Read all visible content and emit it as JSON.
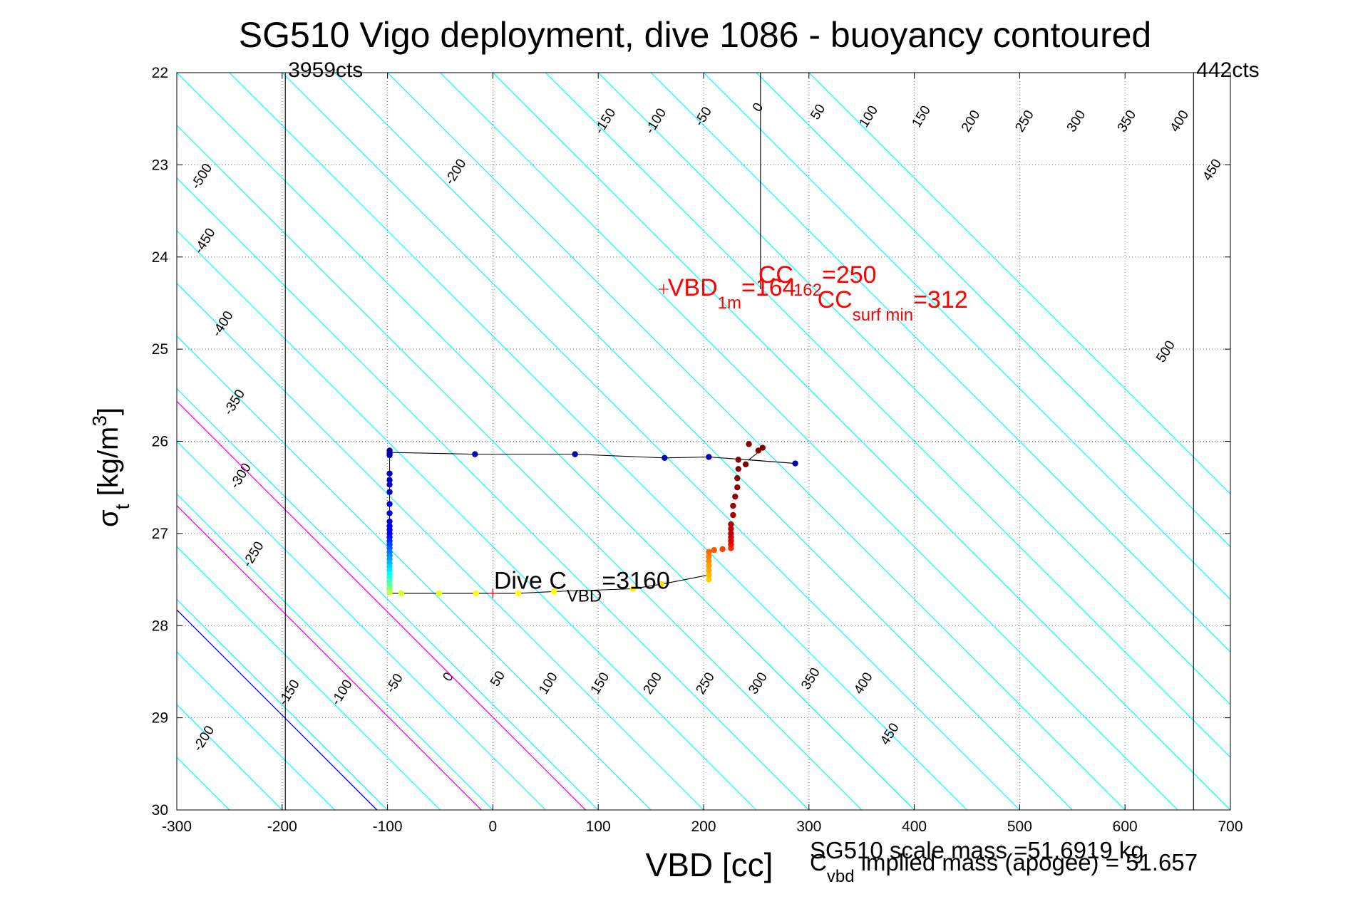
{
  "chart_data": {
    "type": "scatter",
    "title": "SG510 Vigo deployment, dive 1086 - buoyancy contoured",
    "xlabel": "VBD [cc]",
    "ylabel": {
      "sym": "σ",
      "sub": "t",
      "unit": " [kg/m",
      "sup": "3",
      "close": "]"
    },
    "xlim": [
      -300,
      700
    ],
    "ylim": [
      22,
      30
    ],
    "y_reversed": true,
    "xticks": [
      -300,
      -200,
      -100,
      0,
      100,
      200,
      300,
      400,
      500,
      600,
      700
    ],
    "yticks": [
      22,
      23,
      24,
      25,
      26,
      27,
      28,
      29,
      30
    ],
    "grid": true,
    "counts_labels": {
      "left": {
        "x": -197,
        "text": "3959cts"
      },
      "right": {
        "x": 665,
        "text": "442cts"
      }
    },
    "buoyancy_contours": {
      "slope": 87.5,
      "levels": [
        -500,
        -450,
        -400,
        -350,
        -300,
        -250,
        -200,
        -150,
        -100,
        -50,
        0,
        50,
        100,
        150,
        200,
        250,
        300,
        350,
        400,
        450,
        500
      ],
      "upper_labels": [
        {
          "text": "-500",
          "x": -273,
          "y": 23.15
        },
        {
          "text": "-450",
          "x": -270,
          "y": 23.85
        },
        {
          "text": "-400",
          "x": -253,
          "y": 24.75
        },
        {
          "text": "-350",
          "x": -242,
          "y": 25.6
        },
        {
          "text": "-300",
          "x": -236,
          "y": 26.4
        },
        {
          "text": "-250",
          "x": -224,
          "y": 27.25
        },
        {
          "text": "-200",
          "x": -32,
          "y": 23.1
        },
        {
          "text": "-150",
          "x": 110,
          "y": 22.55
        },
        {
          "text": "-100",
          "x": 158,
          "y": 22.55
        },
        {
          "text": "-50",
          "x": 203,
          "y": 22.5
        },
        {
          "text": "0",
          "x": 255,
          "y": 22.4
        },
        {
          "text": "50",
          "x": 312,
          "y": 22.45
        },
        {
          "text": "100",
          "x": 360,
          "y": 22.5
        },
        {
          "text": "150",
          "x": 410,
          "y": 22.5
        },
        {
          "text": "200",
          "x": 457,
          "y": 22.55
        },
        {
          "text": "250",
          "x": 508,
          "y": 22.55
        },
        {
          "text": "300",
          "x": 557,
          "y": 22.55
        },
        {
          "text": "350",
          "x": 605,
          "y": 22.55
        },
        {
          "text": "400",
          "x": 655,
          "y": 22.55
        },
        {
          "text": "450",
          "x": 686,
          "y": 23.08
        },
        {
          "text": "500",
          "x": 642,
          "y": 25.05
        }
      ],
      "lower_labels": [
        {
          "text": "-200",
          "x": -271,
          "y": 29.25
        },
        {
          "text": "-150",
          "x": -190,
          "y": 28.75
        },
        {
          "text": "-100",
          "x": -140,
          "y": 28.75
        },
        {
          "text": "-50",
          "x": -90,
          "y": 28.65
        },
        {
          "text": "0",
          "x": -39,
          "y": 28.58
        },
        {
          "text": "50",
          "x": 8,
          "y": 28.6
        },
        {
          "text": "100",
          "x": 56,
          "y": 28.65
        },
        {
          "text": "150",
          "x": 105,
          "y": 28.65
        },
        {
          "text": "200",
          "x": 155,
          "y": 28.65
        },
        {
          "text": "250",
          "x": 205,
          "y": 28.65
        },
        {
          "text": "300",
          "x": 255,
          "y": 28.65
        },
        {
          "text": "350",
          "x": 305,
          "y": 28.6
        },
        {
          "text": "400",
          "x": 355,
          "y": 28.65
        },
        {
          "text": "450",
          "x": 380,
          "y": 29.2
        }
      ]
    },
    "reference_lines": [
      {
        "name": "vbd-1m-line",
        "color": "#0000ff",
        "x0": -110,
        "y0": 30,
        "slope": 87.5
      },
      {
        "name": "cc-162-line",
        "color": "#ff00ff",
        "x0": -11,
        "y0": 30,
        "slope": 87.5
      },
      {
        "name": "cc-surf-min-line",
        "color": "#ff00ff",
        "x0": 88,
        "y0": 30,
        "slope": 87.5
      }
    ],
    "vertical_lines": [
      {
        "name": "min-counts-line",
        "x": -197,
        "color": "#000000"
      },
      {
        "name": "max-counts-line",
        "x": 665,
        "color": "#000000"
      },
      {
        "name": "vbd-1m-vertical",
        "x": 254,
        "y_from": 22,
        "y_to": 24.35,
        "color": "#000000"
      }
    ],
    "annotations": [
      {
        "name": "vbd-1m-label",
        "main": "VBD",
        "sub": "1m",
        "value": "=164",
        "x": 166,
        "y": 24.42,
        "color": "#ff0000",
        "marker_x": 162,
        "marker_y": 24.35
      },
      {
        "name": "cc-162-label",
        "main": "CC",
        "sub": "162",
        "value": "=250",
        "x": 252,
        "y": 24.28,
        "color": "#ff0000"
      },
      {
        "name": "cc-surf-min-label",
        "main": "CC",
        "sub": "surf min",
        "value": "=312",
        "x": 308,
        "y": 24.55,
        "color": "#ff0000"
      },
      {
        "name": "dive-cvbd-label",
        "main": "Dive C",
        "sub": "VBD",
        "value": "=3160",
        "x": 1,
        "y": 27.6,
        "color": "#000000",
        "marker_x": 0,
        "marker_y": 27.65
      }
    ],
    "path_black": [
      [
        -98,
        26.12
      ],
      [
        -17,
        26.14
      ],
      [
        78,
        26.14
      ],
      [
        163,
        26.18
      ],
      [
        205,
        26.17
      ],
      [
        287,
        26.24
      ],
      [
        243,
        26.2
      ],
      [
        254,
        26.1
      ]
    ],
    "path_bottom": [
      [
        -98,
        27.65
      ],
      [
        -87,
        27.65
      ],
      [
        -51,
        27.65
      ],
      [
        -16,
        27.65
      ],
      [
        24,
        27.65
      ],
      [
        58,
        27.63
      ],
      [
        133,
        27.6
      ],
      [
        160,
        27.55
      ],
      [
        205,
        27.45
      ]
    ],
    "dive_points": [
      {
        "x": -98,
        "y": 26.1,
        "c": "#00009f"
      },
      {
        "x": -98,
        "y": 26.13,
        "c": "#0000a8"
      },
      {
        "x": -98,
        "y": 26.15,
        "c": "#0000b0"
      },
      {
        "x": -98,
        "y": 26.35,
        "c": "#0000b8"
      },
      {
        "x": -98,
        "y": 26.42,
        "c": "#0000c0"
      },
      {
        "x": -98,
        "y": 26.47,
        "c": "#0000c8"
      },
      {
        "x": -98,
        "y": 26.55,
        "c": "#0000d0"
      },
      {
        "x": -98,
        "y": 26.68,
        "c": "#0000d8"
      },
      {
        "x": -98,
        "y": 26.78,
        "c": "#0000e0"
      },
      {
        "x": -98,
        "y": 26.87,
        "c": "#0000e8"
      },
      {
        "x": -98,
        "y": 26.92,
        "c": "#0000f0"
      },
      {
        "x": -98,
        "y": 26.96,
        "c": "#0000f8"
      },
      {
        "x": -98,
        "y": 27.0,
        "c": "#0000ff"
      },
      {
        "x": -98,
        "y": 27.04,
        "c": "#0010ff"
      },
      {
        "x": -98,
        "y": 27.08,
        "c": "#0028ff"
      },
      {
        "x": -98,
        "y": 27.12,
        "c": "#0040ff"
      },
      {
        "x": -98,
        "y": 27.16,
        "c": "#0058ff"
      },
      {
        "x": -98,
        "y": 27.2,
        "c": "#0070ff"
      },
      {
        "x": -98,
        "y": 27.24,
        "c": "#0088ff"
      },
      {
        "x": -98,
        "y": 27.28,
        "c": "#00a0ff"
      },
      {
        "x": -98,
        "y": 27.32,
        "c": "#00b8ff"
      },
      {
        "x": -98,
        "y": 27.36,
        "c": "#00d0ff"
      },
      {
        "x": -98,
        "y": 27.4,
        "c": "#00e8ff"
      },
      {
        "x": -98,
        "y": 27.44,
        "c": "#00ffff"
      },
      {
        "x": -98,
        "y": 27.48,
        "c": "#20ffdf"
      },
      {
        "x": -98,
        "y": 27.52,
        "c": "#40ffbf"
      },
      {
        "x": -98,
        "y": 27.56,
        "c": "#60ff9f"
      },
      {
        "x": -98,
        "y": 27.6,
        "c": "#80ff80"
      },
      {
        "x": -98,
        "y": 27.64,
        "c": "#c0ff40"
      },
      {
        "x": -87,
        "y": 27.65,
        "c": "#e0ff20"
      },
      {
        "x": -51,
        "y": 27.65,
        "c": "#f0ff10"
      },
      {
        "x": -16,
        "y": 27.65,
        "c": "#ffff00"
      },
      {
        "x": 24,
        "y": 27.65,
        "c": "#ffff00"
      },
      {
        "x": 58,
        "y": 27.63,
        "c": "#ffff00"
      },
      {
        "x": 133,
        "y": 27.6,
        "c": "#ffef00"
      },
      {
        "x": 160,
        "y": 27.55,
        "c": "#ffdf00"
      },
      {
        "x": 205,
        "y": 27.5,
        "c": "#ffcf00"
      },
      {
        "x": 205,
        "y": 27.45,
        "c": "#ffbf00"
      },
      {
        "x": 205,
        "y": 27.4,
        "c": "#ffaf00"
      },
      {
        "x": 205,
        "y": 27.35,
        "c": "#ff9f00"
      },
      {
        "x": 205,
        "y": 27.3,
        "c": "#ff8f00"
      },
      {
        "x": 205,
        "y": 27.25,
        "c": "#ff7f00"
      },
      {
        "x": 205,
        "y": 27.2,
        "c": "#ff6a00"
      },
      {
        "x": 210,
        "y": 27.18,
        "c": "#ff5500"
      },
      {
        "x": 218,
        "y": 27.17,
        "c": "#ff4000"
      },
      {
        "x": 226,
        "y": 27.16,
        "c": "#ff2b00"
      },
      {
        "x": 226,
        "y": 27.12,
        "c": "#f01500"
      },
      {
        "x": 226,
        "y": 27.08,
        "c": "#e00000"
      },
      {
        "x": 226,
        "y": 27.04,
        "c": "#d00000"
      },
      {
        "x": 226,
        "y": 27.0,
        "c": "#c00000"
      },
      {
        "x": 226,
        "y": 26.95,
        "c": "#b80000"
      },
      {
        "x": 226,
        "y": 26.9,
        "c": "#b00000"
      },
      {
        "x": 228,
        "y": 26.8,
        "c": "#a80000"
      },
      {
        "x": 228,
        "y": 26.7,
        "c": "#a00000"
      },
      {
        "x": 230,
        "y": 26.6,
        "c": "#980000"
      },
      {
        "x": 232,
        "y": 26.5,
        "c": "#900000"
      },
      {
        "x": 232,
        "y": 26.4,
        "c": "#880000"
      },
      {
        "x": 233,
        "y": 26.3,
        "c": "#850000"
      },
      {
        "x": 233,
        "y": 26.2,
        "c": "#820000"
      },
      {
        "x": 240,
        "y": 26.25,
        "c": "#800000"
      },
      {
        "x": 243,
        "y": 26.03,
        "c": "#800000"
      },
      {
        "x": 252,
        "y": 26.1,
        "c": "#800000"
      },
      {
        "x": 256,
        "y": 26.07,
        "c": "#800000"
      }
    ],
    "black_path_points": [
      {
        "x": -17,
        "y": 26.14,
        "c": "#0000b8"
      },
      {
        "x": 78,
        "y": 26.14,
        "c": "#0000b8"
      },
      {
        "x": 163,
        "y": 26.18,
        "c": "#0000b8"
      },
      {
        "x": 205,
        "y": 26.17,
        "c": "#0000b8"
      },
      {
        "x": 287,
        "y": 26.24,
        "c": "#0000b8"
      }
    ],
    "bottom_text": {
      "xlabel": "VBD [cc]",
      "scale_mass": "SG510 scale mass =51.6919 kg",
      "implied_main": "C",
      "implied_sub": "vbd",
      "implied_rest": " implied mass (apogee) = 51.657"
    },
    "colors": {
      "contour": "#00ffff",
      "grid": "#808080",
      "axis": "#000000",
      "blue_line": "#0000ff",
      "magenta_line": "#ff00ff",
      "annotation_red": "#ff0000"
    }
  }
}
